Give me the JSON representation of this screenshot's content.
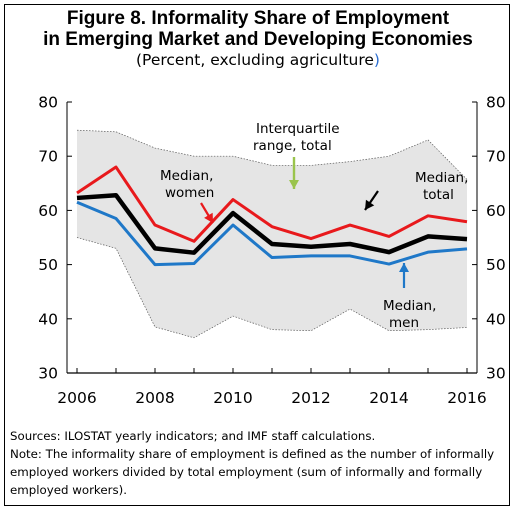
{
  "header": {
    "title_line1": "Figure 8. Informality Share of Employment",
    "title_line2": "in Emerging Market and Developing Economies",
    "subtitle_main": "(Percent, excluding agriculture",
    "subtitle_end": ")"
  },
  "colors": {
    "total": "#000000",
    "women": "#e8191c",
    "men": "#1f78c8",
    "band_fill": "#e5e5e5",
    "band_edge": "#595959",
    "arrow_green": "#9ac44c"
  },
  "chart_data": {
    "type": "line",
    "x": [
      2006,
      2007,
      2008,
      2009,
      2010,
      2011,
      2012,
      2013,
      2014,
      2015,
      2016
    ],
    "xticks": [
      2006,
      2008,
      2010,
      2012,
      2014,
      2016
    ],
    "ylim": [
      30,
      80
    ],
    "yticks": [
      30,
      40,
      50,
      60,
      70,
      80
    ],
    "secondary_axis": true,
    "band": {
      "upper": [
        74.8,
        74.5,
        71.5,
        70.0,
        70.0,
        68.3,
        68.3,
        69.0,
        70.0,
        73.0,
        65.7
      ],
      "lower": [
        55.0,
        53.0,
        38.5,
        36.5,
        40.5,
        38.0,
        37.8,
        41.8,
        37.8,
        38.0,
        38.4
      ]
    },
    "series": [
      {
        "key": "women",
        "values": [
          63.2,
          68.0,
          57.3,
          54.3,
          62.0,
          57.0,
          54.8,
          57.3,
          55.2,
          59.0,
          57.9
        ]
      },
      {
        "key": "total",
        "values": [
          62.3,
          62.8,
          53.0,
          52.2,
          59.5,
          53.8,
          53.3,
          53.8,
          52.3,
          55.2,
          54.7
        ]
      },
      {
        "key": "men",
        "values": [
          61.5,
          58.5,
          50.0,
          50.2,
          57.3,
          51.3,
          51.6,
          51.6,
          50.1,
          52.3,
          52.9
        ]
      }
    ],
    "annotations": {
      "women_1": "Median,",
      "women_2": "women",
      "iqr_1": "Interquartile",
      "iqr_2": "range, total",
      "total_1": "Median,",
      "total_2": "total",
      "men_1": "Median,",
      "men_2": "men"
    }
  },
  "notes": {
    "sources": "Sources: ILOSTAT yearly indicators; and IMF staff calculations.",
    "note": "Note: The informality share of employment is defined as the number of informally employed workers divided by total employment (sum of informally and formally employed workers)."
  }
}
